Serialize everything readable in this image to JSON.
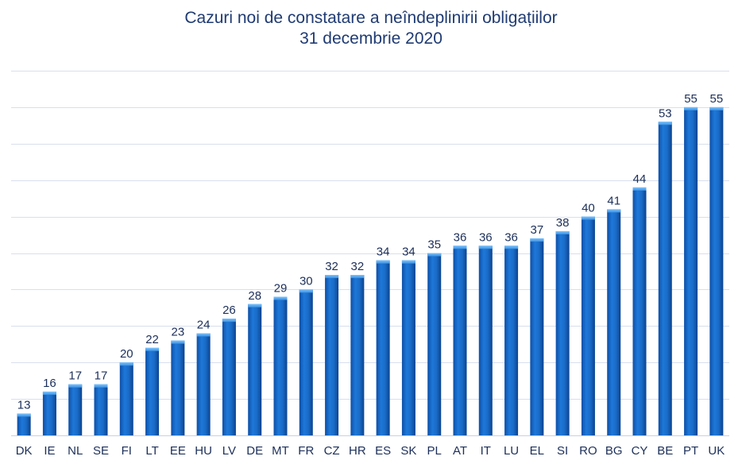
{
  "chart_data": {
    "type": "bar",
    "title": "Cazuri noi de constatare a neîndeplinirii obligațiilor",
    "subtitle": "31 decembrie 2020",
    "categories": [
      "DK",
      "IE",
      "NL",
      "SE",
      "FI",
      "LT",
      "EE",
      "HU",
      "LV",
      "DE",
      "MT",
      "FR",
      "CZ",
      "HR",
      "ES",
      "SK",
      "PL",
      "AT",
      "IT",
      "LU",
      "EL",
      "SI",
      "RO",
      "BG",
      "CY",
      "BE",
      "PT",
      "UK"
    ],
    "values": [
      13,
      16,
      17,
      17,
      20,
      22,
      23,
      24,
      26,
      28,
      29,
      30,
      32,
      32,
      34,
      34,
      35,
      36,
      36,
      36,
      37,
      38,
      40,
      41,
      44,
      53,
      55,
      55
    ],
    "xlabel": "",
    "ylabel": "",
    "ylim": [
      10,
      60
    ],
    "grid": true,
    "legend": "none",
    "bar_color": "#1565c0",
    "bar_highlight": "#4aa3f0",
    "text_color": "#1c2f5a",
    "grid_color": "#d8dfec"
  }
}
